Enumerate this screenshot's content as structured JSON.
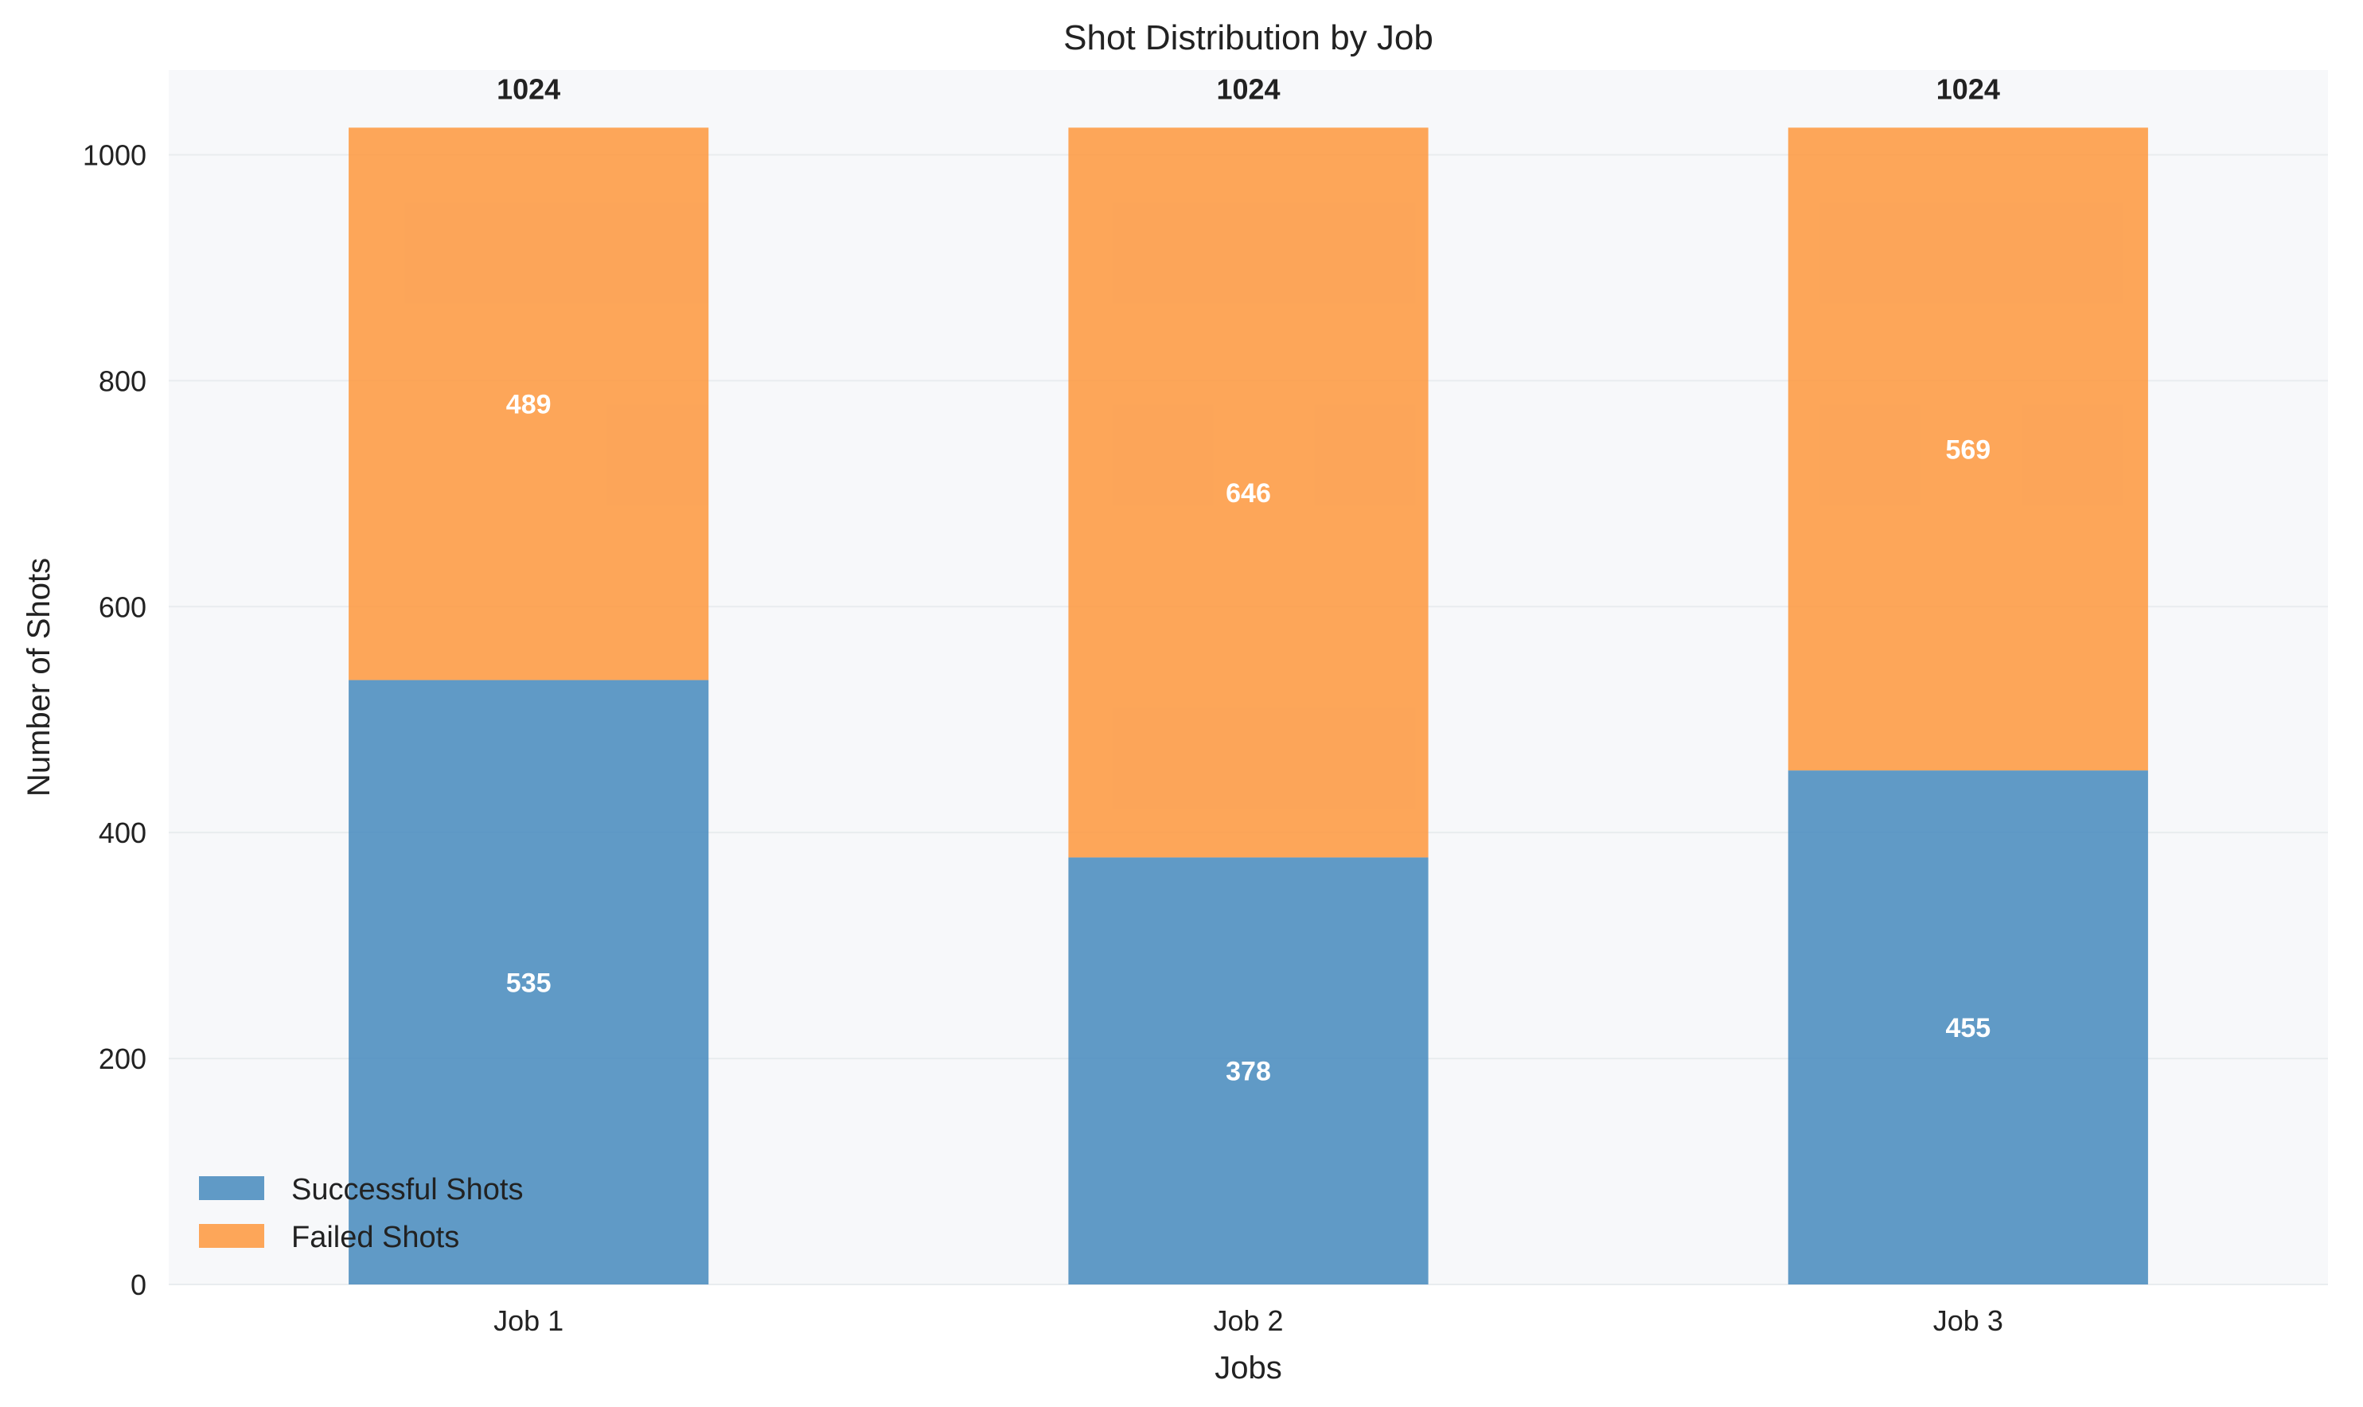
{
  "chart_data": {
    "type": "bar",
    "stacked": true,
    "title": "Shot Distribution by Job",
    "xlabel": "Jobs",
    "ylabel": "Number of Shots",
    "categories": [
      "Job 1",
      "Job 2",
      "Job 3"
    ],
    "series": [
      {
        "name": "Successful Shots",
        "values": [
          535,
          378,
          455
        ],
        "color": "#4f8fc0"
      },
      {
        "name": "Failed Shots",
        "values": [
          489,
          646,
          569
        ],
        "color": "#fd9c47"
      }
    ],
    "totals": [
      1024,
      1024,
      1024
    ],
    "ylim": [
      0,
      1075
    ],
    "yticks": [
      0,
      200,
      400,
      600,
      800,
      1000
    ],
    "grid": true,
    "legend": "lower-left",
    "plot_background": "#f7f8fa"
  }
}
